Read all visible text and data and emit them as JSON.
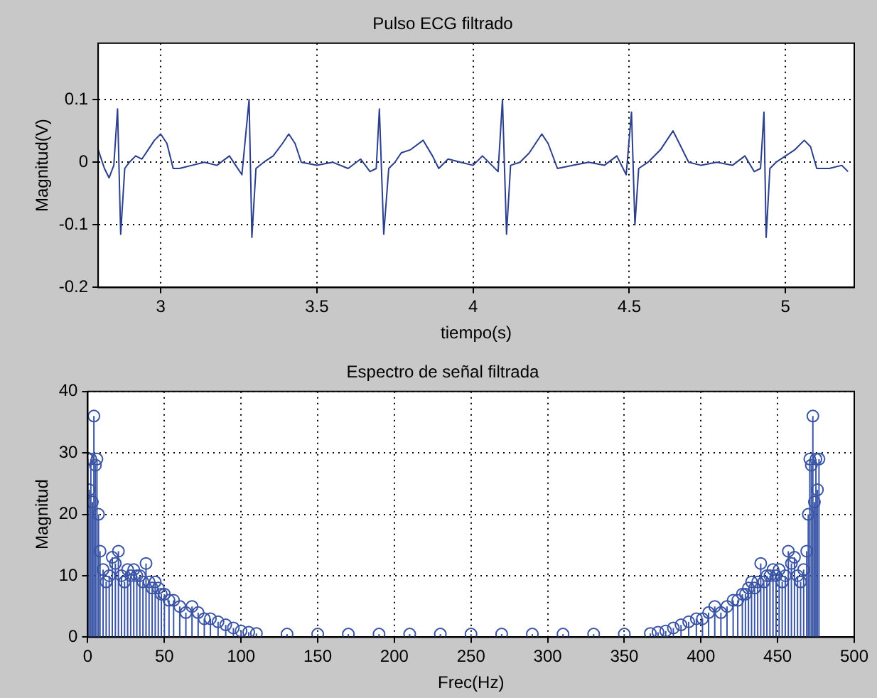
{
  "chart_data": [
    {
      "type": "line",
      "title": "Pulso ECG filtrado",
      "xlabel": "tiempo(s)",
      "ylabel": "Magnitud(V)",
      "xlim": [
        2.8,
        5.22
      ],
      "ylim": [
        -0.2,
        0.19
      ],
      "xticks": [
        3,
        3.5,
        4,
        4.5,
        5
      ],
      "yticks": [
        -0.2,
        -0.1,
        0,
        0.1
      ],
      "grid": true,
      "marker": "none",
      "series": [
        {
          "color": "#2b3f8c",
          "x": [
            2.8,
            2.82,
            2.835,
            2.85,
            2.862,
            2.872,
            2.885,
            2.9,
            2.92,
            2.94,
            2.96,
            2.98,
            3.0,
            3.02,
            3.04,
            3.06,
            3.1,
            3.14,
            3.18,
            3.22,
            3.24,
            3.26,
            3.283,
            3.292,
            3.305,
            3.33,
            3.36,
            3.39,
            3.41,
            3.43,
            3.45,
            3.5,
            3.55,
            3.6,
            3.64,
            3.67,
            3.69,
            3.7,
            3.714,
            3.73,
            3.75,
            3.77,
            3.8,
            3.84,
            3.87,
            3.89,
            3.92,
            3.96,
            4.0,
            4.03,
            4.06,
            4.08,
            4.094,
            4.107,
            4.12,
            4.15,
            4.18,
            4.22,
            4.24,
            4.27,
            4.32,
            4.37,
            4.42,
            4.46,
            4.49,
            4.507,
            4.518,
            4.53,
            4.56,
            4.6,
            4.64,
            4.66,
            4.69,
            4.73,
            4.78,
            4.83,
            4.87,
            4.9,
            4.92,
            4.931,
            4.938,
            4.95,
            4.97,
            5.0,
            5.03,
            5.06,
            5.08,
            5.1,
            5.14,
            5.18,
            5.2
          ],
          "values": [
            0.02,
            -0.01,
            -0.025,
            -0.005,
            0.085,
            -0.115,
            -0.01,
            0.0,
            0.01,
            0.005,
            0.02,
            0.035,
            0.045,
            0.03,
            -0.01,
            -0.01,
            -0.005,
            0.0,
            -0.005,
            0.01,
            -0.005,
            -0.02,
            0.1,
            -0.12,
            -0.01,
            0.0,
            0.01,
            0.03,
            0.045,
            0.03,
            0.0,
            -0.005,
            0.0,
            -0.01,
            0.005,
            -0.015,
            -0.01,
            0.085,
            -0.115,
            -0.01,
            0.0,
            0.015,
            0.02,
            0.035,
            0.01,
            -0.01,
            0.005,
            0.0,
            -0.005,
            0.01,
            -0.005,
            -0.015,
            0.1,
            -0.115,
            -0.005,
            0.0,
            0.015,
            0.045,
            0.03,
            -0.01,
            -0.005,
            0.0,
            -0.005,
            0.01,
            -0.02,
            0.08,
            -0.1,
            -0.01,
            0.0,
            0.02,
            0.05,
            0.03,
            0.0,
            -0.005,
            0.0,
            -0.005,
            0.01,
            -0.015,
            -0.01,
            0.08,
            -0.12,
            -0.01,
            0.0,
            0.01,
            0.02,
            0.035,
            0.025,
            -0.01,
            -0.01,
            -0.005,
            -0.015
          ]
        }
      ]
    },
    {
      "type": "lollipop",
      "title": "Espectro de señal filtrada",
      "xlabel": "Frec(Hz)",
      "ylabel": "Magnitud",
      "xlim": [
        0,
        500
      ],
      "ylim": [
        0,
        40
      ],
      "xticks": [
        0,
        50,
        100,
        150,
        200,
        250,
        300,
        350,
        400,
        450,
        500
      ],
      "yticks": [
        0,
        10,
        20,
        30,
        40
      ],
      "grid": true,
      "marker": "circle",
      "series": [
        {
          "color": "#3a55a6",
          "x": [
            0,
            1,
            2,
            3,
            4,
            5,
            6,
            7,
            8,
            10,
            12,
            14,
            16,
            18,
            20,
            22,
            24,
            26,
            28,
            30,
            32,
            34,
            36,
            38,
            40,
            42,
            44,
            46,
            48,
            50,
            53,
            56,
            60,
            64,
            68,
            72,
            76,
            80,
            85,
            90,
            95,
            100,
            105,
            110,
            130,
            150,
            170,
            190,
            210,
            230,
            250,
            270,
            290,
            310,
            330,
            350,
            367,
            372,
            377,
            382,
            387,
            392,
            397,
            401,
            405,
            409,
            413,
            417,
            421,
            424,
            427,
            429,
            431,
            433,
            435,
            437,
            439,
            441,
            443,
            445,
            447,
            449,
            451,
            453,
            455,
            457,
            459,
            461,
            463,
            465,
            467,
            469,
            470,
            471,
            472,
            473,
            474,
            475,
            476,
            477
          ],
          "values": [
            29,
            24,
            29,
            22,
            36,
            28,
            29,
            20,
            14,
            11,
            9,
            10,
            13,
            12,
            14,
            10,
            9,
            11,
            10,
            11,
            10,
            10,
            9,
            12,
            9,
            8,
            9,
            8,
            7,
            7,
            6,
            6,
            5,
            4,
            5,
            4,
            3,
            3,
            2.5,
            2,
            1.5,
            1,
            0.8,
            0.6,
            0.5,
            0.5,
            0.5,
            0.5,
            0.5,
            0.5,
            0.5,
            0.5,
            0.5,
            0.5,
            0.5,
            0.5,
            0.6,
            0.8,
            1,
            1.5,
            2,
            2.5,
            3,
            3,
            4,
            5,
            4,
            5,
            6,
            6,
            7,
            7,
            8,
            9,
            8,
            9,
            12,
            9,
            10,
            10,
            11,
            10,
            11,
            9,
            10,
            14,
            12,
            13,
            10,
            9,
            11,
            14,
            20,
            29,
            28,
            36,
            22,
            29,
            24,
            29
          ]
        }
      ]
    }
  ]
}
